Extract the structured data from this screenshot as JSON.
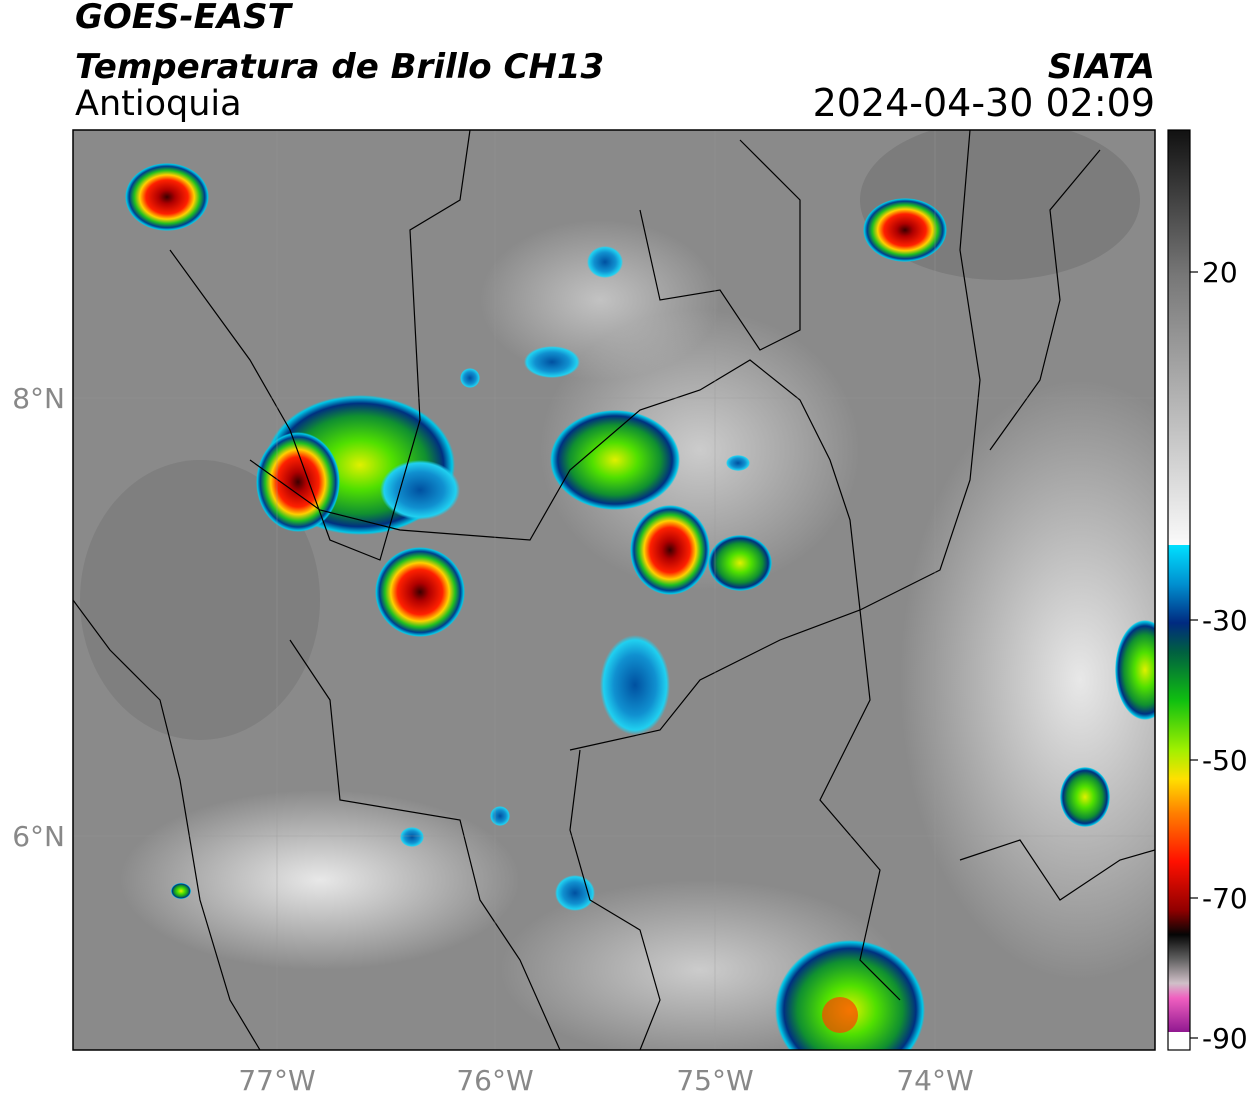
{
  "header": {
    "title": "GOES-EAST",
    "subtitle": "Temperatura de Brillo CH13",
    "region": "Antioquia",
    "source": "SIATA",
    "datetime": "2024-04-30 02:09"
  },
  "map": {
    "lat_labels": [
      "8°N",
      "6°N"
    ],
    "lon_labels": [
      "77°W",
      "76°W",
      "75°W",
      "74°W"
    ]
  },
  "colorbar": {
    "ticks": [
      20,
      -30,
      -50,
      -70,
      -90
    ]
  }
}
